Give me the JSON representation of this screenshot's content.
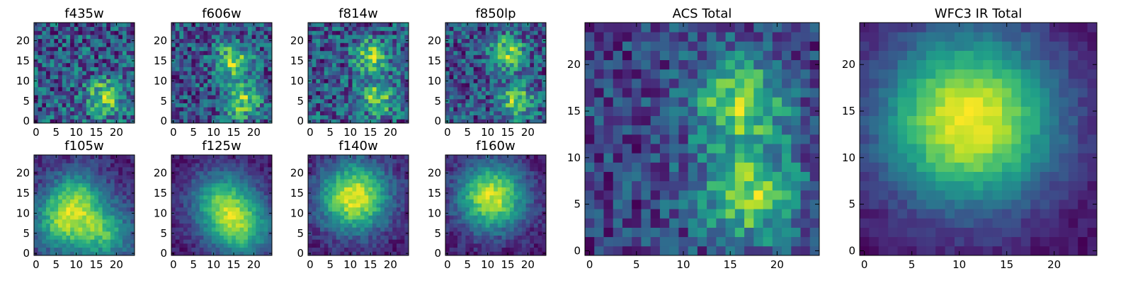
{
  "chart_data": [
    {
      "type": "heatmap",
      "title": "f435w",
      "grid_size": 25,
      "xticks": [
        0,
        5,
        10,
        15,
        20
      ],
      "yticks": [
        0,
        5,
        10,
        15,
        20
      ],
      "colormap": "viridis",
      "xlim": [
        -0.5,
        24.5
      ],
      "ylim": [
        -0.5,
        24.5
      ],
      "peaks": [
        [
          17,
          6
        ]
      ],
      "noise": 0.55,
      "background": 0.45,
      "spread": 3.0
    },
    {
      "type": "heatmap",
      "title": "f606w",
      "grid_size": 25,
      "xticks": [
        0,
        5,
        10,
        15,
        20
      ],
      "yticks": [
        0,
        5,
        10,
        15,
        20
      ],
      "colormap": "viridis",
      "xlim": [
        -0.5,
        24.5
      ],
      "ylim": [
        -0.5,
        24.5
      ],
      "peaks": [
        [
          17,
          5
        ],
        [
          15,
          15
        ]
      ],
      "noise": 0.5,
      "background": 0.45,
      "spread": 3.0
    },
    {
      "type": "heatmap",
      "title": "f814w",
      "grid_size": 25,
      "xticks": [
        0,
        5,
        10,
        15,
        20
      ],
      "yticks": [
        0,
        5,
        10,
        15,
        20
      ],
      "colormap": "viridis",
      "xlim": [
        -0.5,
        24.5
      ],
      "ylim": [
        -0.5,
        24.5
      ],
      "peaks": [
        [
          17,
          6
        ],
        [
          15,
          16
        ]
      ],
      "noise": 0.55,
      "background": 0.45,
      "spread": 3.0
    },
    {
      "type": "heatmap",
      "title": "f850lp",
      "grid_size": 25,
      "xticks": [
        0,
        5,
        10,
        15,
        20
      ],
      "yticks": [
        0,
        5,
        10,
        15,
        20
      ],
      "colormap": "viridis",
      "xlim": [
        -0.5,
        24.5
      ],
      "ylim": [
        -0.5,
        24.5
      ],
      "peaks": [
        [
          17,
          5
        ],
        [
          15,
          17
        ]
      ],
      "noise": 0.5,
      "background": 0.5,
      "spread": 3.0
    },
    {
      "type": "heatmap",
      "title": "f105w",
      "grid_size": 25,
      "xticks": [
        0,
        5,
        10,
        15,
        20
      ],
      "yticks": [
        0,
        5,
        10,
        15,
        20
      ],
      "colormap": "viridis",
      "xlim": [
        -0.5,
        24.5
      ],
      "ylim": [
        -0.5,
        24.5
      ],
      "peaks": [
        [
          10,
          14
        ],
        [
          17,
          5
        ],
        [
          6,
          7
        ]
      ],
      "noise": 0.2,
      "background": 0.35,
      "spread": 5.0
    },
    {
      "type": "heatmap",
      "title": "f125w",
      "grid_size": 25,
      "xticks": [
        0,
        5,
        10,
        15,
        20
      ],
      "yticks": [
        0,
        5,
        10,
        15,
        20
      ],
      "colormap": "viridis",
      "xlim": [
        -0.5,
        24.5
      ],
      "ylim": [
        -0.5,
        24.5
      ],
      "peaks": [
        [
          12,
          13
        ],
        [
          17,
          6
        ]
      ],
      "noise": 0.15,
      "background": 0.3,
      "spread": 5.5
    },
    {
      "type": "heatmap",
      "title": "f140w",
      "grid_size": 25,
      "xticks": [
        0,
        5,
        10,
        15,
        20
      ],
      "yticks": [
        0,
        5,
        10,
        15,
        20
      ],
      "colormap": "viridis",
      "xlim": [
        -0.5,
        24.5
      ],
      "ylim": [
        -0.5,
        24.5
      ],
      "peaks": [
        [
          11,
          14
        ]
      ],
      "noise": 0.12,
      "background": 0.1,
      "spread": 6.0
    },
    {
      "type": "heatmap",
      "title": "f160w",
      "grid_size": 25,
      "xticks": [
        0,
        5,
        10,
        15,
        20
      ],
      "yticks": [
        0,
        5,
        10,
        15,
        20
      ],
      "colormap": "viridis",
      "xlim": [
        -0.5,
        24.5
      ],
      "ylim": [
        -0.5,
        24.5
      ],
      "peaks": [
        [
          11,
          14
        ]
      ],
      "noise": 0.12,
      "background": 0.05,
      "spread": 6.0
    },
    {
      "type": "heatmap",
      "title": "ACS Total",
      "grid_size": 25,
      "xticks": [
        0,
        5,
        10,
        15,
        20
      ],
      "yticks": [
        0,
        5,
        10,
        15,
        20
      ],
      "colormap": "viridis",
      "xlim": [
        -0.5,
        24.5
      ],
      "ylim": [
        -0.5,
        24.5
      ],
      "peaks": [
        [
          17,
          6
        ],
        [
          16,
          16
        ]
      ],
      "noise": 0.35,
      "background": 0.5,
      "spread": 3.5
    },
    {
      "type": "heatmap",
      "title": "WFC3 IR Total",
      "grid_size": 25,
      "xticks": [
        0,
        5,
        10,
        15,
        20
      ],
      "yticks": [
        0,
        5,
        10,
        15,
        20
      ],
      "colormap": "viridis",
      "xlim": [
        -0.5,
        24.5
      ],
      "ylim": [
        -0.5,
        24.5
      ],
      "peaks": [
        [
          11,
          14
        ]
      ],
      "noise": 0.06,
      "background": 0.05,
      "spread": 6.5
    }
  ]
}
